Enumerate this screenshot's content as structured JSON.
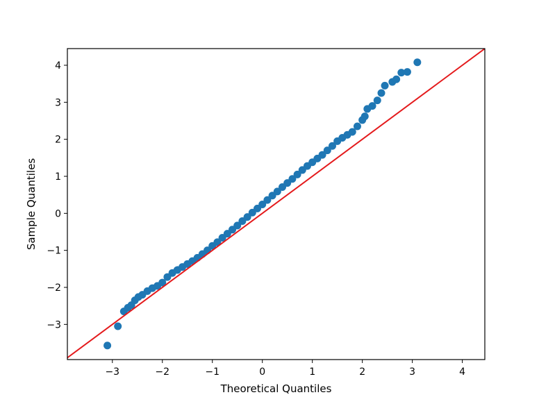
{
  "chart_data": {
    "type": "scatter",
    "xlabel": "Theoretical Quantiles",
    "ylabel": "Sample Quantiles",
    "xlim": [
      -3.9,
      4.45
    ],
    "ylim": [
      -3.95,
      4.45
    ],
    "xticks": [
      -3,
      -2,
      -1,
      0,
      1,
      2,
      3,
      4
    ],
    "yticks": [
      -3,
      -2,
      -1,
      0,
      1,
      2,
      3,
      4
    ],
    "xtick_labels": [
      "−3",
      "−2",
      "−1",
      "0",
      "1",
      "2",
      "3",
      "4"
    ],
    "ytick_labels": [
      "−3",
      "−2",
      "−1",
      "0",
      "1",
      "2",
      "3",
      "4"
    ],
    "grid": false,
    "colors": {
      "points": "#1f77b4",
      "reference_line": "#e41a1c"
    },
    "reference_line": {
      "slope": 1,
      "intercept": 0
    },
    "points": [
      [
        -3.1,
        -3.57
      ],
      [
        -2.89,
        -3.05
      ],
      [
        -2.77,
        -2.65
      ],
      [
        -2.69,
        -2.55
      ],
      [
        -2.62,
        -2.48
      ],
      [
        -2.55,
        -2.35
      ],
      [
        -2.48,
        -2.26
      ],
      [
        -2.4,
        -2.2
      ],
      [
        -2.3,
        -2.1
      ],
      [
        -2.2,
        -2.02
      ],
      [
        -2.1,
        -1.96
      ],
      [
        -2.0,
        -1.87
      ],
      [
        -1.9,
        -1.72
      ],
      [
        -1.8,
        -1.61
      ],
      [
        -1.7,
        -1.53
      ],
      [
        -1.6,
        -1.45
      ],
      [
        -1.5,
        -1.37
      ],
      [
        -1.4,
        -1.29
      ],
      [
        -1.3,
        -1.2
      ],
      [
        -1.2,
        -1.1
      ],
      [
        -1.1,
        -1.0
      ],
      [
        -1.0,
        -0.88
      ],
      [
        -0.9,
        -0.78
      ],
      [
        -0.8,
        -0.66
      ],
      [
        -0.7,
        -0.55
      ],
      [
        -0.6,
        -0.44
      ],
      [
        -0.5,
        -0.33
      ],
      [
        -0.4,
        -0.21
      ],
      [
        -0.3,
        -0.1
      ],
      [
        -0.2,
        0.02
      ],
      [
        -0.1,
        0.13
      ],
      [
        0.0,
        0.24
      ],
      [
        0.1,
        0.36
      ],
      [
        0.2,
        0.48
      ],
      [
        0.3,
        0.59
      ],
      [
        0.4,
        0.71
      ],
      [
        0.5,
        0.82
      ],
      [
        0.6,
        0.93
      ],
      [
        0.7,
        1.05
      ],
      [
        0.8,
        1.17
      ],
      [
        0.9,
        1.28
      ],
      [
        1.0,
        1.38
      ],
      [
        1.1,
        1.48
      ],
      [
        1.2,
        1.58
      ],
      [
        1.3,
        1.7
      ],
      [
        1.4,
        1.82
      ],
      [
        1.5,
        1.95
      ],
      [
        1.6,
        2.04
      ],
      [
        1.7,
        2.12
      ],
      [
        1.8,
        2.2
      ],
      [
        1.9,
        2.35
      ],
      [
        2.0,
        2.52
      ],
      [
        2.05,
        2.62
      ],
      [
        2.1,
        2.82
      ],
      [
        2.2,
        2.9
      ],
      [
        2.3,
        3.05
      ],
      [
        2.38,
        3.25
      ],
      [
        2.45,
        3.45
      ],
      [
        2.6,
        3.55
      ],
      [
        2.68,
        3.62
      ],
      [
        2.78,
        3.8
      ],
      [
        2.9,
        3.82
      ],
      [
        3.1,
        4.08
      ]
    ]
  }
}
